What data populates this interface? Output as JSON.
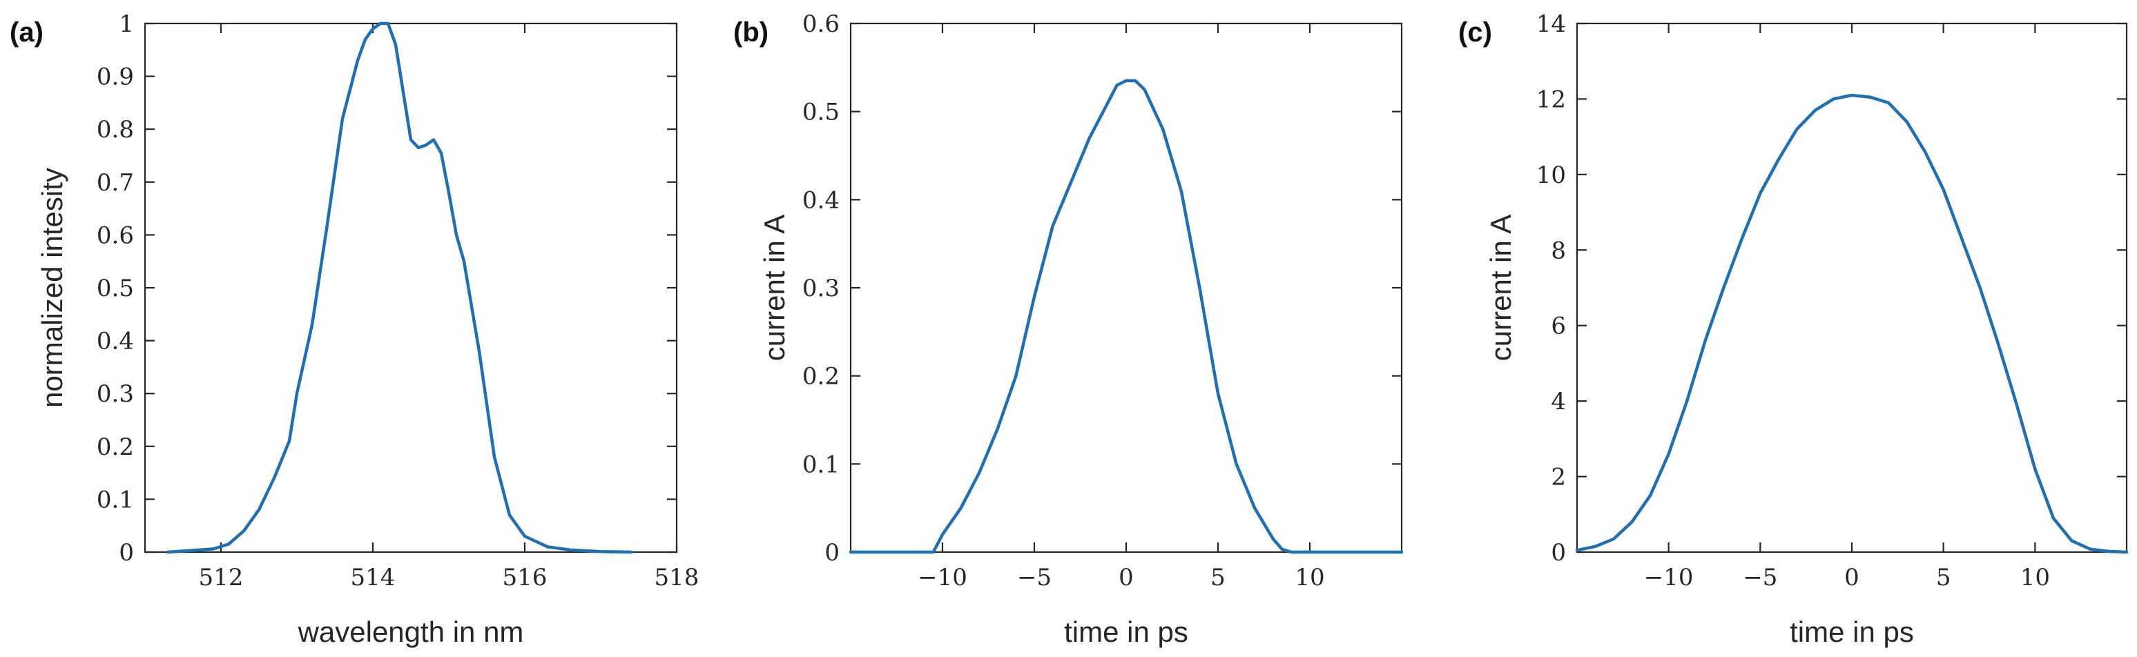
{
  "colors": {
    "series": "#1f6fb4",
    "axis": "#262626"
  },
  "chart_data": [
    {
      "panel_label": "(a)",
      "type": "line",
      "title": "",
      "xlabel": "wavelength in nm",
      "ylabel": "normalized intesity",
      "xlim": [
        511,
        518
      ],
      "ylim": [
        0,
        1
      ],
      "xticks": [
        512,
        514,
        516,
        518
      ],
      "xtick_labels": [
        "512",
        "514",
        "516",
        "518"
      ],
      "yticks": [
        0,
        0.1,
        0.2,
        0.3,
        0.4,
        0.5,
        0.6,
        0.7,
        0.8,
        0.9,
        1
      ],
      "ytick_labels": [
        "0",
        "0.1",
        "0.2",
        "0.3",
        "0.4",
        "0.5",
        "0.6",
        "0.7",
        "0.8",
        "0.9",
        "1"
      ],
      "grid": false,
      "series": [
        {
          "x": [
            511.3,
            511.6,
            511.9,
            512.1,
            512.3,
            512.5,
            512.7,
            512.9,
            513.0,
            513.2,
            513.4,
            513.6,
            513.8,
            513.9,
            514.0,
            514.1,
            514.2,
            514.3,
            514.4,
            514.5,
            514.6,
            514.7,
            514.8,
            514.9,
            515.0,
            515.1,
            515.2,
            515.4,
            515.6,
            515.8,
            516.0,
            516.3,
            516.6,
            517.0,
            517.4
          ],
          "y": [
            0.0,
            0.003,
            0.006,
            0.015,
            0.04,
            0.08,
            0.14,
            0.21,
            0.3,
            0.43,
            0.62,
            0.82,
            0.93,
            0.97,
            0.99,
            1.0,
            1.0,
            0.96,
            0.87,
            0.78,
            0.765,
            0.77,
            0.78,
            0.755,
            0.68,
            0.6,
            0.55,
            0.38,
            0.18,
            0.07,
            0.03,
            0.01,
            0.004,
            0.001,
            0.0
          ]
        }
      ]
    },
    {
      "panel_label": "(b)",
      "type": "line",
      "title": "",
      "xlabel": "time in ps",
      "ylabel": "current in A",
      "xlim": [
        -15,
        15
      ],
      "ylim": [
        0,
        0.6
      ],
      "xticks": [
        -10,
        -5,
        0,
        5,
        10
      ],
      "xtick_labels": [
        "−10",
        "−5",
        "0",
        "5",
        "10"
      ],
      "yticks": [
        0,
        0.1,
        0.2,
        0.3,
        0.4,
        0.5,
        0.6
      ],
      "ytick_labels": [
        "0",
        "0.1",
        "0.2",
        "0.3",
        "0.4",
        "0.5",
        "0.6"
      ],
      "grid": false,
      "series": [
        {
          "x": [
            -15,
            -10.5,
            -10,
            -9,
            -8,
            -7,
            -6,
            -5,
            -4,
            -3,
            -2,
            -1,
            -0.5,
            0,
            0.5,
            1,
            2,
            3,
            4,
            5,
            6,
            7,
            8,
            8.5,
            9,
            15
          ],
          "y": [
            0,
            0,
            0.02,
            0.05,
            0.09,
            0.14,
            0.2,
            0.29,
            0.37,
            0.42,
            0.47,
            0.51,
            0.53,
            0.535,
            0.535,
            0.525,
            0.48,
            0.41,
            0.3,
            0.18,
            0.1,
            0.05,
            0.015,
            0.003,
            0,
            0
          ]
        }
      ]
    },
    {
      "panel_label": "(c)",
      "type": "line",
      "title": "",
      "xlabel": "time in ps",
      "ylabel": "current in A",
      "xlim": [
        -15,
        15
      ],
      "ylim": [
        0,
        14
      ],
      "xticks": [
        -10,
        -5,
        0,
        5,
        10
      ],
      "xtick_labels": [
        "−10",
        "−5",
        "0",
        "5",
        "10"
      ],
      "yticks": [
        0,
        2,
        4,
        6,
        8,
        10,
        12,
        14
      ],
      "ytick_labels": [
        "0",
        "2",
        "4",
        "6",
        "8",
        "10",
        "12",
        "14"
      ],
      "grid": false,
      "series": [
        {
          "x": [
            -15,
            -14,
            -13,
            -12,
            -11,
            -10,
            -9,
            -8,
            -7,
            -6,
            -5,
            -4,
            -3,
            -2,
            -1,
            0,
            1,
            2,
            3,
            4,
            5,
            6,
            7,
            8,
            9,
            10,
            11,
            12,
            13,
            14,
            15
          ],
          "y": [
            0.05,
            0.15,
            0.35,
            0.8,
            1.5,
            2.6,
            4.0,
            5.6,
            7.0,
            8.3,
            9.5,
            10.4,
            11.2,
            11.7,
            12.0,
            12.1,
            12.05,
            11.9,
            11.4,
            10.6,
            9.6,
            8.3,
            7.0,
            5.5,
            3.9,
            2.2,
            0.9,
            0.3,
            0.08,
            0.02,
            0.0
          ]
        }
      ]
    }
  ]
}
